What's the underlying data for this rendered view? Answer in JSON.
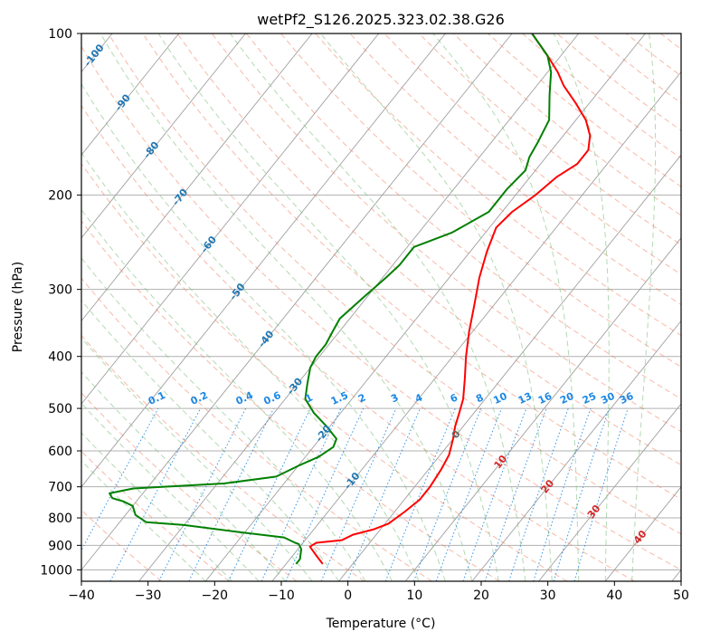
{
  "chart_data": {
    "type": "line",
    "subtype": "skew-t log-p diagram",
    "title": "wetPf2_S126.2025.323.02.38.G26",
    "xlabel": "Temperature (°C)",
    "ylabel": "Pressure (hPa)",
    "xlim": [
      -40,
      50
    ],
    "ylim": [
      1050,
      100
    ],
    "x_ticks": [
      -40,
      -30,
      -20,
      -10,
      0,
      10,
      20,
      30,
      40,
      50
    ],
    "x_tick_labels": [
      "−40",
      "−30",
      "−20",
      "−10",
      "0",
      "10",
      "20",
      "30",
      "40",
      "50"
    ],
    "y_ticks": [
      100,
      200,
      300,
      400,
      500,
      600,
      700,
      800,
      900,
      1000
    ],
    "y_tick_labels": [
      "100",
      "200",
      "300",
      "400",
      "500",
      "600",
      "700",
      "800",
      "900",
      "1000"
    ],
    "grid": true,
    "colors": {
      "temperature": "#ff0000",
      "dewpoint": "#008000",
      "isotherm": "#a0a0a0",
      "dry_adiabat": "#f08060",
      "moist_adiabat": "#80c080",
      "mixing_ratio": "#1e88e5",
      "isotherm_label": "#1f77b4",
      "moist_label": "#d62728",
      "zero_label": "#666666",
      "hgrid": "#b0b0b0"
    },
    "series": [
      {
        "name": "Temperature",
        "color": "#ff0000",
        "points": [
          [
            -4.5,
            975
          ],
          [
            -6.5,
            940
          ],
          [
            -8.5,
            905
          ],
          [
            -8.0,
            890
          ],
          [
            -4.5,
            880
          ],
          [
            -3.5,
            860
          ],
          [
            -1.0,
            840
          ],
          [
            0.5,
            820
          ],
          [
            1.5,
            780
          ],
          [
            2.3,
            740
          ],
          [
            2.3,
            700
          ],
          [
            1.9,
            650
          ],
          [
            1.3,
            610
          ],
          [
            0.0,
            570
          ],
          [
            -1.2,
            540
          ],
          [
            -2.2,
            510
          ],
          [
            -3.3,
            480
          ],
          [
            -5.5,
            440
          ],
          [
            -8.0,
            400
          ],
          [
            -10.5,
            360
          ],
          [
            -13.0,
            320
          ],
          [
            -15.5,
            285
          ],
          [
            -17.5,
            255
          ],
          [
            -19.0,
            230
          ],
          [
            -18.5,
            215
          ],
          [
            -17.0,
            200
          ],
          [
            -16.0,
            185
          ],
          [
            -14.5,
            175
          ],
          [
            -14.5,
            165
          ],
          [
            -16.0,
            155
          ],
          [
            -18.5,
            145
          ],
          [
            -22.0,
            135
          ],
          [
            -26.0,
            125
          ],
          [
            -28.5,
            118
          ],
          [
            -32.0,
            110
          ],
          [
            -37.0,
            100
          ]
        ]
      },
      {
        "name": "Dewpoint",
        "color": "#008000",
        "points": [
          [
            -8.5,
            975
          ],
          [
            -8.5,
            955
          ],
          [
            -9.0,
            935
          ],
          [
            -9.5,
            915
          ],
          [
            -10.5,
            895
          ],
          [
            -11.2,
            890
          ],
          [
            -13.5,
            870
          ],
          [
            -21.0,
            850
          ],
          [
            -30.0,
            825
          ],
          [
            -36.0,
            815
          ],
          [
            -38.5,
            790
          ],
          [
            -40.0,
            760
          ],
          [
            -42.0,
            745
          ],
          [
            -44.0,
            735
          ],
          [
            -45.0,
            720
          ],
          [
            -42.0,
            705
          ],
          [
            -29.0,
            690
          ],
          [
            -22.0,
            670
          ],
          [
            -20.0,
            640
          ],
          [
            -18.0,
            615
          ],
          [
            -17.0,
            590
          ],
          [
            -17.5,
            570
          ],
          [
            -20.5,
            540
          ],
          [
            -24.0,
            510
          ],
          [
            -27.0,
            480
          ],
          [
            -28.5,
            450
          ],
          [
            -30.0,
            420
          ],
          [
            -30.5,
            400
          ],
          [
            -30.5,
            380
          ],
          [
            -31.0,
            360
          ],
          [
            -31.5,
            340
          ],
          [
            -30.5,
            310
          ],
          [
            -29.5,
            285
          ],
          [
            -29.0,
            270
          ],
          [
            -29.0,
            250
          ],
          [
            -25.0,
            235
          ],
          [
            -22.0,
            215
          ],
          [
            -22.0,
            195
          ],
          [
            -21.5,
            180
          ],
          [
            -22.5,
            170
          ],
          [
            -23.0,
            160
          ],
          [
            -24.0,
            145
          ],
          [
            -27.0,
            130
          ],
          [
            -29.5,
            118
          ],
          [
            -32.0,
            110
          ],
          [
            -37.0,
            100
          ]
        ]
      }
    ],
    "isotherm_labels": [
      "-100",
      "-90",
      "-80",
      "-70",
      "-60",
      "-50",
      "-40",
      "-30",
      "-20",
      "-10",
      "0",
      "10",
      "20",
      "30",
      "40"
    ],
    "mixing_ratio_labels": [
      "0.1",
      "0.2",
      "0.4",
      "0.6",
      "1",
      "1.5",
      "2",
      "3",
      "4",
      "6",
      "8",
      "10",
      "13",
      "16",
      "20",
      "25",
      "30",
      "36"
    ]
  }
}
